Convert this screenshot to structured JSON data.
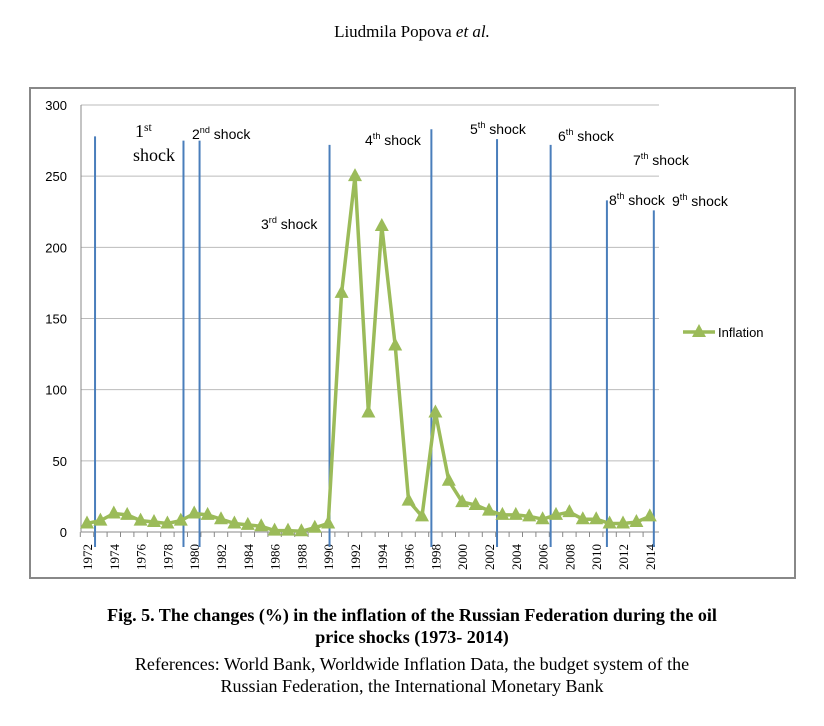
{
  "header": {
    "author": "Liudmila Popova",
    "etal": "et al."
  },
  "chart_data": {
    "type": "line",
    "title": "",
    "xlabel": "",
    "ylabel": "",
    "ylim": [
      0,
      300
    ],
    "yticks": [
      0,
      50,
      100,
      150,
      200,
      250,
      300
    ],
    "x": [
      1972,
      1973,
      1974,
      1975,
      1976,
      1977,
      1978,
      1979,
      1980,
      1981,
      1982,
      1983,
      1984,
      1985,
      1986,
      1987,
      1988,
      1989,
      1990,
      1991,
      1992,
      1993,
      1994,
      1995,
      1996,
      1997,
      1998,
      1999,
      2000,
      2001,
      2002,
      2003,
      2004,
      2005,
      2006,
      2007,
      2008,
      2009,
      2010,
      2011,
      2012,
      2013,
      2014
    ],
    "xtick_labels": [
      "1972",
      "1974",
      "1976",
      "1978",
      "1980",
      "1982",
      "1984",
      "1986",
      "1988",
      "1990",
      "1992",
      "1994",
      "1996",
      "1998",
      "2000",
      "2002",
      "2004",
      "2006",
      "2008",
      "2010",
      "2012",
      "2014"
    ],
    "series": [
      {
        "name": "Inflation",
        "color": "#9bbb59",
        "values": [
          6,
          8,
          13,
          12,
          8,
          7,
          6,
          8,
          13,
          12,
          9,
          6,
          5,
          4,
          1,
          1,
          0.5,
          3,
          6,
          168,
          250,
          84,
          215,
          131,
          22,
          11,
          84,
          36,
          21,
          19,
          15,
          12,
          12,
          11,
          9,
          12,
          14,
          9,
          9,
          6,
          6,
          7,
          11
        ]
      }
    ],
    "legend": {
      "label": "Inflation",
      "position": "right"
    },
    "shocks": [
      {
        "sup": "st",
        "pre": "1",
        "post": " shock",
        "year": 1972.6,
        "top": 278
      },
      {
        "sup": "nd",
        "pre": "2",
        "post": " shock",
        "year": 1979.2,
        "top": 275
      },
      {
        "sup": "nd",
        "pre": "",
        "post": "",
        "year": 1980.4,
        "top": 275
      },
      {
        "sup": "rd",
        "pre": "3",
        "post": " shock",
        "year": 1990.1,
        "top": 272
      },
      {
        "sup": "th",
        "pre": "4",
        "post": " shock",
        "year": 1997.7,
        "top": 283
      },
      {
        "sup": "th",
        "pre": "5",
        "post": " shock",
        "year": 2002.6,
        "top": 276
      },
      {
        "sup": "th",
        "pre": "6",
        "post": " shock",
        "year": 2006.6,
        "top": 272
      },
      {
        "sup": "th",
        "pre": "8",
        "post": " shock",
        "year": 2010.8,
        "top": 233
      },
      {
        "sup": "th",
        "pre": "9",
        "post": " shock",
        "year": 2014.3,
        "top": 226
      }
    ],
    "shock_labels": [
      {
        "pre": "1",
        "sup": "st",
        "post": "shock"
      },
      {
        "pre": "2",
        "sup": "nd",
        "post": " shock"
      },
      {
        "pre": "3",
        "sup": "rd",
        "post": " shock"
      },
      {
        "pre": "4",
        "sup": "th",
        "post": " shock"
      },
      {
        "pre": "5",
        "sup": "th",
        "post": " shock"
      },
      {
        "pre": "6",
        "sup": "th",
        "post": " shock"
      },
      {
        "pre": "7",
        "sup": "th",
        "post": " shock"
      },
      {
        "pre": "8",
        "sup": "th",
        "post": " shock"
      },
      {
        "pre": "9",
        "sup": "th",
        "post": " shock"
      }
    ]
  },
  "caption": {
    "title_line1": "Fig. 5. The changes (%) in the inflation of the Russian Federation during the oil",
    "title_line2": "price shocks (1973- 2014)",
    "refs_line1": "References: World Bank, Worldwide Inflation Data, the budget system of the",
    "refs_line2": "Russian Federation, the International Monetary Bank"
  }
}
